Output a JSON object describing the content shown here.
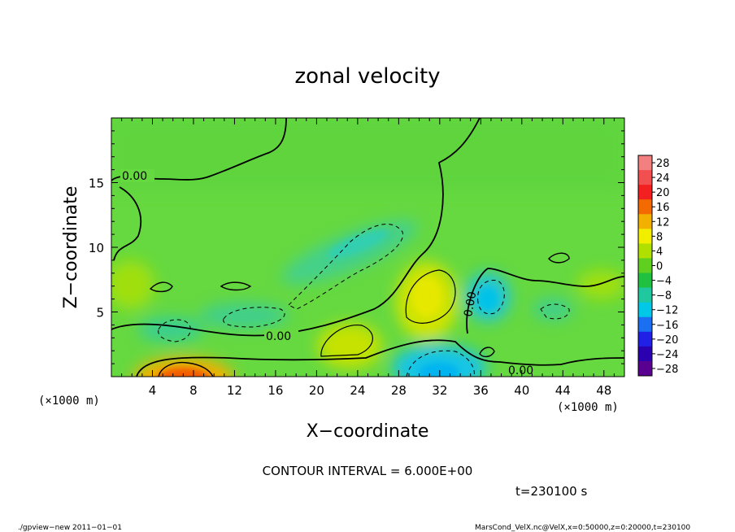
{
  "chart_data": {
    "type": "heatmap",
    "title": "zonal velocity",
    "xlabel": "X−coordinate",
    "ylabel": "Z−coordinate",
    "x_unit": "(×1000 m)",
    "x_unit_right": "(×1000 m)",
    "xlim": [
      0,
      50
    ],
    "ylim": [
      0,
      20
    ],
    "x_ticks": [
      4,
      8,
      12,
      16,
      20,
      24,
      28,
      32,
      36,
      40,
      44,
      48
    ],
    "y_ticks": [
      5,
      10,
      15
    ],
    "colorbar_levels": [
      28,
      24,
      20,
      16,
      12,
      8,
      4,
      0,
      -4,
      -8,
      -12,
      -16,
      -20,
      -24,
      -28
    ],
    "colorbar_labels": [
      "28",
      "24",
      "20",
      "16",
      "12",
      "8",
      "4",
      "0",
      "−4",
      "−8",
      "−12",
      "−16",
      "−20",
      "−24",
      "−28"
    ],
    "contour_interval": 6.0,
    "contour_interval_text": "CONTOUR INTERVAL = 6.000E+00",
    "contour_labels": [
      "0.00",
      "0.00",
      "0.00",
      "0.00"
    ],
    "time_text": "t=230100 s",
    "features": [
      {
        "x": 7,
        "z": 0.3,
        "value": 18,
        "sign": "positive"
      },
      {
        "x": 31,
        "z": 0.8,
        "value": -10,
        "sign": "negative"
      },
      {
        "x": 32.5,
        "z": 6.2,
        "value": 9,
        "sign": "positive"
      },
      {
        "x": 24.5,
        "z": 9.5,
        "value": -6,
        "sign": "negative"
      },
      {
        "x": 37,
        "z": 6,
        "value": -11,
        "sign": "negative"
      },
      {
        "x": 23,
        "z": 3,
        "value": 8,
        "sign": "positive"
      },
      {
        "x": 6,
        "z": 3.5,
        "value": -6,
        "sign": "negative"
      },
      {
        "x": 14,
        "z": 4.8,
        "value": -5,
        "sign": "negative"
      },
      {
        "x": 42,
        "z": 5,
        "value": -5,
        "sign": "negative"
      },
      {
        "x": 48,
        "z": 7,
        "value": 5,
        "sign": "positive"
      }
    ]
  },
  "colors": {
    "background_green": "#66d940",
    "colorbar": [
      "#f28080",
      "#f25050",
      "#f22020",
      "#f26a00",
      "#f2b000",
      "#f2ee00",
      "#b0e000",
      "#60d020",
      "#20c040",
      "#20c8a0",
      "#00c8e6",
      "#1a70f0",
      "#2020e6",
      "#2a00b0",
      "#5a0090"
    ]
  },
  "footer": {
    "left": "./gpview−new  2011−01−01",
    "right": "MarsCond_VelX.nc@VelX,x=0:50000,z=0:20000,t=230100"
  }
}
